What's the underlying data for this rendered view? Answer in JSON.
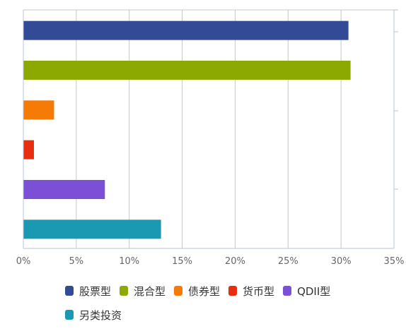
{
  "chart_data": {
    "type": "bar",
    "orientation": "horizontal",
    "categories": [
      "股票型",
      "混合型",
      "债券型",
      "货币型",
      "QDII型",
      "另类投资"
    ],
    "values": [
      30.7,
      30.9,
      2.9,
      1.0,
      7.7,
      13.0
    ],
    "colors": [
      "#334b97",
      "#8ba900",
      "#f57a06",
      "#e82e0f",
      "#7b4fd6",
      "#1b98b2"
    ],
    "xlim": [
      0,
      35
    ],
    "xticks": [
      "0%",
      "5%",
      "10%",
      "15%",
      "20%",
      "25%",
      "30%",
      "35%"
    ],
    "grid": true,
    "legend_position": "bottom",
    "legend": [
      "股票型",
      "混合型",
      "债券型",
      "货币型",
      "QDII型",
      "另类投资"
    ]
  }
}
